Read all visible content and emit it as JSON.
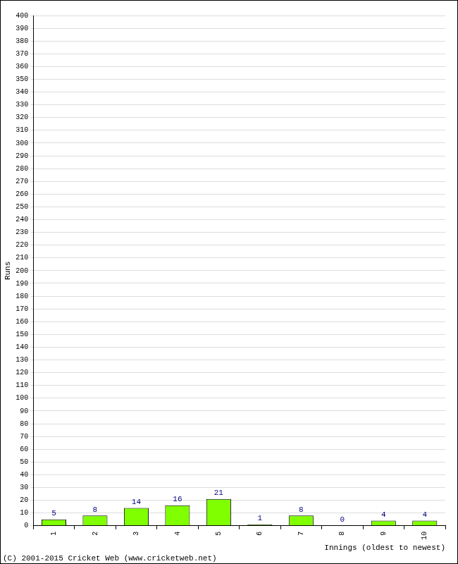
{
  "chart_data": {
    "type": "bar",
    "categories": [
      "1",
      "2",
      "3",
      "4",
      "5",
      "6",
      "7",
      "8",
      "9",
      "10"
    ],
    "values": [
      5,
      8,
      14,
      16,
      21,
      1,
      8,
      0,
      4,
      4
    ],
    "color": "#7fff00",
    "y_label": "Runs",
    "x_label": "Innings (oldest to newest)",
    "annotations": [
      "(C) 2001-2015 Cricket Web (www.cricketweb.net)"
    ],
    "ylim": [
      0,
      400
    ],
    "yticks": [
      0,
      10,
      20,
      30,
      40,
      50,
      60,
      70,
      80,
      90,
      100,
      110,
      120,
      130,
      140,
      150,
      160,
      170,
      180,
      190,
      200,
      210,
      220,
      230,
      240,
      250,
      260,
      270,
      280,
      290,
      300,
      310,
      320,
      330,
      340,
      350,
      360,
      370,
      380,
      390,
      400
    ],
    "grid": true,
    "data_labels": true
  }
}
